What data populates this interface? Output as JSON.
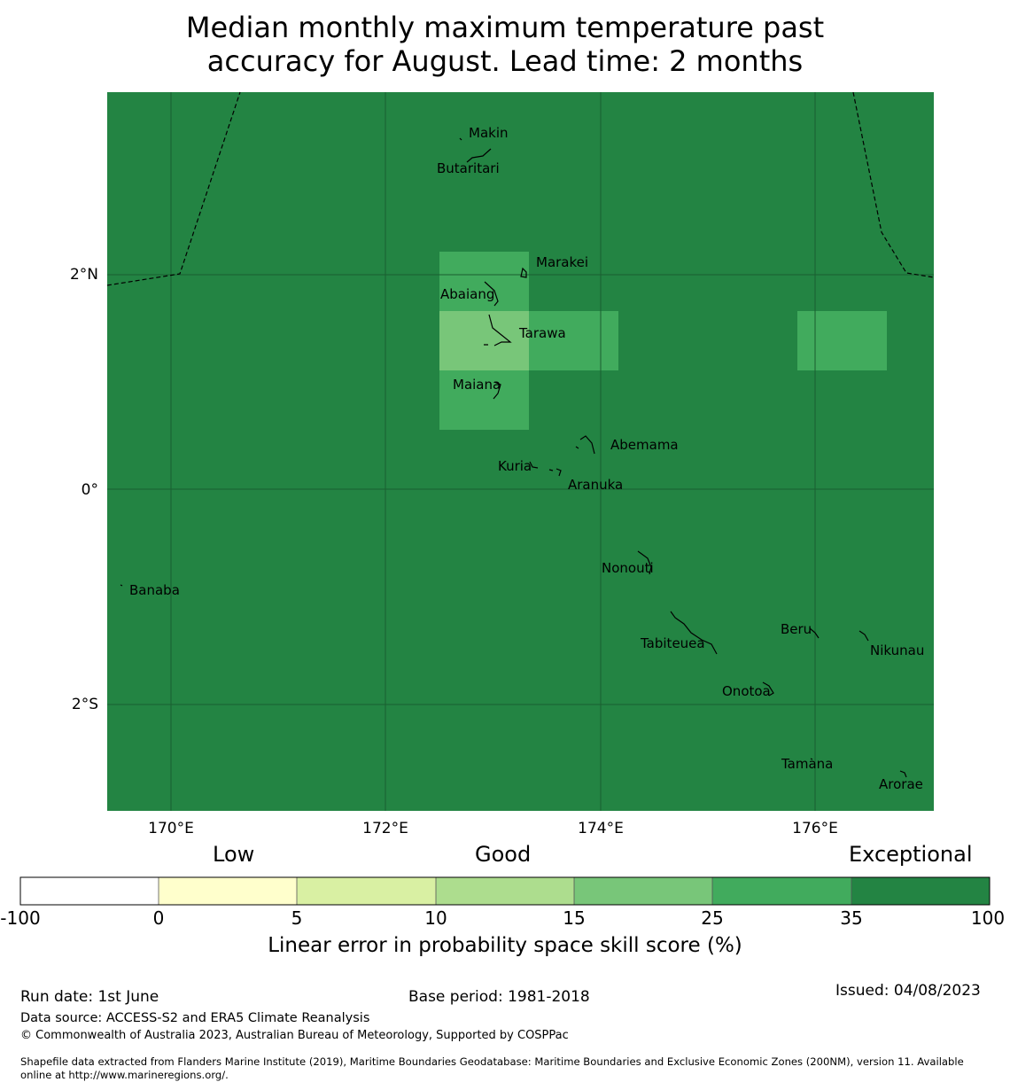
{
  "title": {
    "line1": "Median monthly maximum temperature past",
    "line2": "accuracy for August. Lead time: 2 months"
  },
  "map": {
    "background_color": "#238443",
    "lon_ticks": [
      "170°E",
      "172°E",
      "174°E",
      "176°E"
    ],
    "lat_ticks": [
      "2°N",
      "0°",
      "2°S"
    ],
    "islands": [
      "Makin",
      "Butaritari",
      "Marakei",
      "Abaiang",
      "Tarawa",
      "Maiana",
      "Abemama",
      "Kuria",
      "Aranuka",
      "Nonouti",
      "Banaba",
      "Beru",
      "Tabiteuea",
      "Nikunau",
      "Onotoa",
      "Tamana",
      "Arorae"
    ]
  },
  "legend": {
    "categories": [
      "Low",
      "Good",
      "Exceptional"
    ],
    "ticks": [
      "-100",
      "0",
      "5",
      "10",
      "15",
      "25",
      "35",
      "100"
    ],
    "colors": [
      "#ffffff",
      "#ffffcc",
      "#d9f0a3",
      "#addd8e",
      "#78c679",
      "#41ab5d",
      "#238443"
    ],
    "title": "Linear error in probability space skill score (%)"
  },
  "footer": {
    "run_date": "Run date: 1st June",
    "base_period": "Base period: 1981-2018",
    "issued": "Issued: 04/08/2023",
    "data_source": "Data source: ACCESS-S2 and ERA5 Climate Reanalysis",
    "copyright": "© Commonwealth of Australia 2023, Australian Bureau of Meteorology, Supported by COSPPac",
    "shapefile_line1": "Shapefile data extracted from Flanders Marine Institute (2019), Maritime Boundaries Geodatabase: Maritime Boundaries and Exclusive Economic Zones (200NM), version 11. Available",
    "shapefile_line2": "online at http://www.marineregions.org/."
  }
}
